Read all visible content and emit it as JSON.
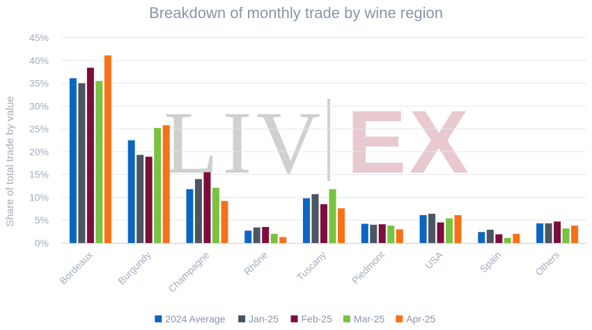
{
  "watermark": {
    "left": "LIV",
    "right": "EX"
  },
  "colors": {
    "background": "#ffffff",
    "grid": "#e2e6ea",
    "axis": "#c8cdd3",
    "text": "#a3acb9"
  },
  "chart_data": {
    "type": "bar",
    "title": "Breakdown of monthly trade by wine region",
    "ylabel": "Share of total trade by value",
    "xlabel": "",
    "ylim": [
      0,
      45
    ],
    "yticks": [
      "0%",
      "5%",
      "10%",
      "15%",
      "20%",
      "25%",
      "30%",
      "35%",
      "40%",
      "45%"
    ],
    "grid": true,
    "legend_position": "bottom",
    "categories": [
      "Bordeaux",
      "Burgundy",
      "Champagne",
      "Rhône",
      "Tuscany",
      "Piedmont",
      "USA",
      "Spain",
      "Others"
    ],
    "series": [
      {
        "name": "2024 Average",
        "color": "#0b66c3",
        "values": [
          36.1,
          22.5,
          11.8,
          2.7,
          9.8,
          4.2,
          6.1,
          2.4,
          4.3
        ]
      },
      {
        "name": "Jan-25",
        "color": "#4c5562",
        "values": [
          35.0,
          19.3,
          14.0,
          3.4,
          10.7,
          4.0,
          6.4,
          2.9,
          4.3
        ]
      },
      {
        "name": "Feb-25",
        "color": "#7d0d3c",
        "values": [
          38.4,
          18.9,
          15.5,
          3.5,
          8.5,
          4.1,
          4.5,
          1.9,
          4.7
        ]
      },
      {
        "name": "Mar-25",
        "color": "#78c340",
        "values": [
          35.5,
          25.2,
          12.1,
          2.0,
          11.8,
          3.8,
          5.4,
          1.1,
          3.2
        ]
      },
      {
        "name": "Apr-25",
        "color": "#f97117",
        "values": [
          41.1,
          25.8,
          9.2,
          1.3,
          7.6,
          3.0,
          6.1,
          2.0,
          3.8
        ]
      }
    ]
  }
}
